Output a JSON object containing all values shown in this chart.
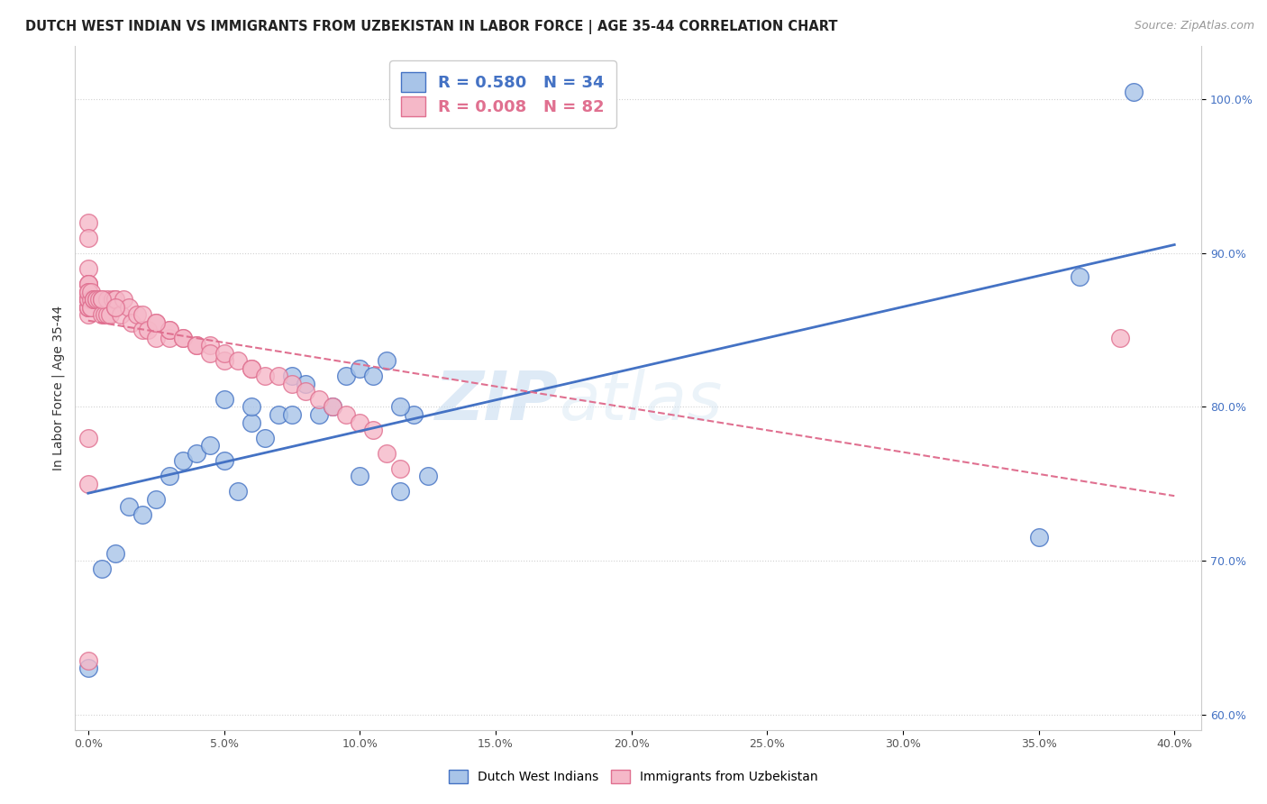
{
  "title": "DUTCH WEST INDIAN VS IMMIGRANTS FROM UZBEKISTAN IN LABOR FORCE | AGE 35-44 CORRELATION CHART",
  "source": "Source: ZipAtlas.com",
  "ylabel_label": "In Labor Force | Age 35-44",
  "legend_blue_label": "Dutch West Indians",
  "legend_pink_label": "Immigrants from Uzbekistan",
  "r_blue": 0.58,
  "n_blue": 34,
  "r_pink": 0.008,
  "n_pink": 82,
  "blue_color": "#a8c4e8",
  "pink_color": "#f5b8c8",
  "blue_line_color": "#4472c4",
  "pink_line_color": "#e07090",
  "watermark_zip": "ZIP",
  "watermark_atlas": "atlas",
  "blue_scatter_x": [
    0.0,
    0.5,
    1.0,
    1.5,
    2.0,
    2.5,
    3.0,
    3.5,
    4.0,
    4.5,
    5.0,
    5.5,
    6.0,
    6.5,
    7.0,
    7.5,
    8.0,
    8.5,
    9.0,
    9.5,
    10.0,
    10.5,
    11.0,
    11.5,
    12.0,
    5.0,
    6.0,
    7.5,
    10.0,
    11.5,
    12.5,
    35.0,
    36.5,
    38.5
  ],
  "blue_scatter_y": [
    63.0,
    69.5,
    70.5,
    73.5,
    73.0,
    74.0,
    75.5,
    76.5,
    77.0,
    77.5,
    76.5,
    74.5,
    79.0,
    78.0,
    79.5,
    82.0,
    81.5,
    79.5,
    80.0,
    82.0,
    82.5,
    82.0,
    83.0,
    74.5,
    79.5,
    80.5,
    80.0,
    79.5,
    75.5,
    80.0,
    75.5,
    71.5,
    88.5,
    100.5
  ],
  "pink_scatter_x": [
    0.0,
    0.0,
    0.0,
    0.0,
    0.0,
    0.0,
    0.0,
    0.0,
    0.0,
    0.0,
    0.0,
    0.0,
    0.0,
    0.0,
    0.0,
    0.0,
    0.0,
    0.0,
    0.0,
    0.0,
    0.1,
    0.1,
    0.1,
    0.1,
    0.2,
    0.2,
    0.2,
    0.3,
    0.3,
    0.4,
    0.5,
    0.5,
    0.6,
    0.7,
    0.7,
    0.8,
    0.9,
    1.0,
    1.0,
    1.0,
    1.2,
    1.3,
    1.5,
    1.6,
    1.8,
    2.0,
    2.0,
    2.2,
    2.5,
    2.5,
    3.0,
    3.0,
    3.0,
    3.5,
    3.5,
    4.0,
    4.0,
    4.5,
    4.5,
    5.0,
    5.0,
    5.5,
    6.0,
    6.0,
    6.5,
    7.0,
    7.5,
    8.0,
    8.5,
    9.0,
    9.5,
    10.0,
    10.5,
    11.0,
    11.5,
    0.5,
    1.0,
    2.5,
    0.0,
    0.0,
    0.0,
    38.0
  ],
  "pink_scatter_y": [
    86.5,
    89.0,
    92.0,
    88.0,
    87.0,
    91.0,
    86.0,
    86.5,
    87.5,
    88.0,
    86.5,
    87.0,
    87.0,
    88.0,
    87.5,
    87.0,
    86.5,
    87.0,
    87.0,
    87.5,
    86.5,
    87.0,
    86.5,
    87.5,
    87.0,
    87.0,
    87.0,
    87.0,
    87.0,
    87.0,
    87.0,
    86.0,
    86.0,
    86.0,
    87.0,
    86.0,
    87.0,
    87.0,
    86.5,
    87.0,
    86.0,
    87.0,
    86.5,
    85.5,
    86.0,
    85.0,
    86.0,
    85.0,
    84.5,
    85.5,
    84.5,
    85.0,
    85.0,
    84.5,
    84.5,
    84.0,
    84.0,
    84.0,
    83.5,
    83.0,
    83.5,
    83.0,
    82.5,
    82.5,
    82.0,
    82.0,
    81.5,
    81.0,
    80.5,
    80.0,
    79.5,
    79.0,
    78.5,
    77.0,
    76.0,
    87.0,
    86.5,
    85.5,
    63.5,
    75.0,
    78.0,
    84.5
  ]
}
